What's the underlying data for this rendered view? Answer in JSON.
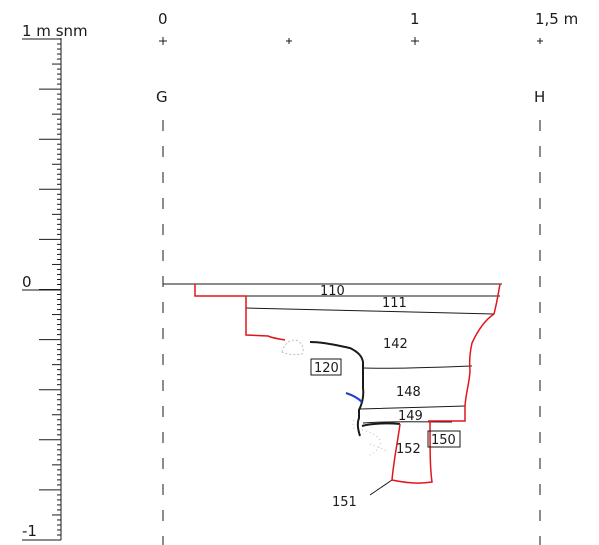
{
  "scale": {
    "top_label": "1 m snm",
    "zero_label": "0",
    "bottom_label": "-1"
  },
  "horizontal_scale": {
    "start": "0",
    "mid": "1",
    "end": "1,5 m"
  },
  "section_points": {
    "left": "G",
    "right": "H"
  },
  "contexts": {
    "c110": "110",
    "c111": "111",
    "c142": "142",
    "c120": "120",
    "c148": "148",
    "c149": "149",
    "c150": "150",
    "c152": "152",
    "c151": "151"
  },
  "colors": {
    "ink": "#1a1a1a",
    "cut_outline": "#e0161b",
    "blue_line": "#1f3bd6",
    "background": "#ffffff"
  }
}
